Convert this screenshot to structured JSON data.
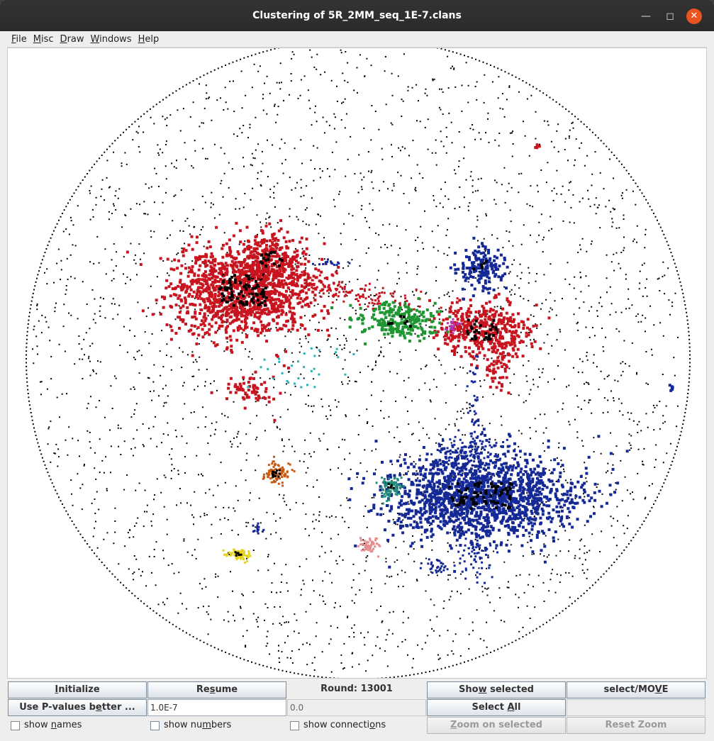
{
  "window": {
    "title": "Clustering of 5R_2MM_seq_1E-7.clans"
  },
  "menu": [
    {
      "label": "File",
      "mnemonic": "F"
    },
    {
      "label": "Misc",
      "mnemonic": "M"
    },
    {
      "label": "Draw",
      "mnemonic": "D"
    },
    {
      "label": "Windows",
      "mnemonic": "W"
    },
    {
      "label": "Help",
      "mnemonic": "H"
    }
  ],
  "controls": {
    "initialize": "Initialize",
    "resume": "Resume",
    "round": "Round: 13001",
    "show_selected": "Show selected",
    "select_move": "select/MOVE",
    "use_pvalues": "Use P-values better ...",
    "pvalue_threshold": "1.0E-7",
    "secondary_value": "0.0",
    "select_all": "Select All",
    "show_names": "show names",
    "show_numbers": "show numbers",
    "show_connections": "show connections",
    "zoom_on_selected": "Zoom on selected",
    "reset_zoom": "Reset Zoom"
  },
  "clusters": [
    {
      "name": "red-cluster-large",
      "color": "#c8141e"
    },
    {
      "name": "red-cluster-right",
      "color": "#c8141e"
    },
    {
      "name": "green-cluster",
      "color": "#1e9632"
    },
    {
      "name": "blue-cluster-large",
      "color": "#142896"
    },
    {
      "name": "blue-cluster-top",
      "color": "#142896"
    },
    {
      "name": "orange-cluster",
      "color": "#c85a14"
    },
    {
      "name": "teal-cluster",
      "color": "#1e8c78"
    },
    {
      "name": "cyan-cluster",
      "color": "#28b4b4"
    },
    {
      "name": "yellow-cluster",
      "color": "#e6d21e"
    },
    {
      "name": "pink-cluster",
      "color": "#e68c8c"
    },
    {
      "name": "magenta-cluster",
      "color": "#b432b4"
    }
  ]
}
